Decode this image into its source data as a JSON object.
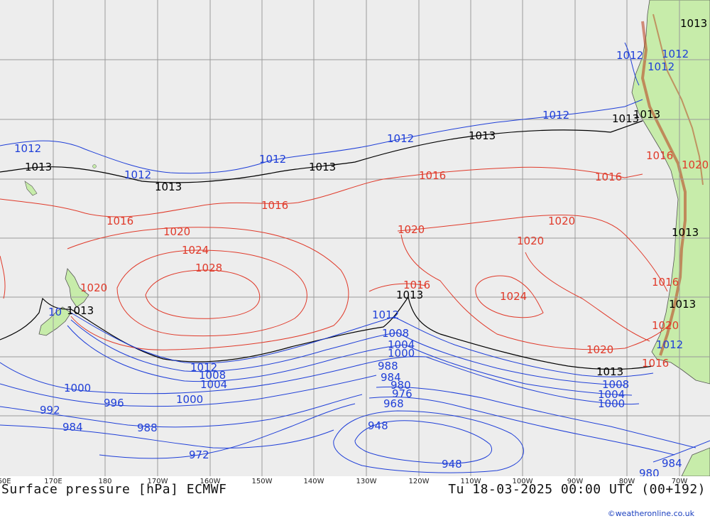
{
  "footer": {
    "title": "Surface pressure [hPa] ECMWF",
    "valid_time": "Tu 18-03-2025 00:00 UTC (00+192)",
    "credit": "©weatheronline.co.uk"
  },
  "longitude_labels": [
    "60E",
    "170E",
    "180",
    "170W",
    "160W",
    "150W",
    "140W",
    "130W",
    "120W",
    "110W",
    "100W",
    "90W",
    "80W",
    "70W"
  ],
  "isobar_labels": {
    "black": [
      "1013",
      "1013",
      "1013",
      "1013",
      "1013",
      "1013",
      "1013",
      "1013",
      "1013",
      "1013",
      "1013",
      "1013"
    ],
    "red": [
      "1016",
      "1016",
      "1016",
      "1016",
      "1016",
      "1020",
      "1020",
      "1020",
      "1020",
      "1020",
      "1020",
      "1024",
      "1024",
      "1028",
      "1016",
      "1016",
      "1016",
      "1020",
      "1020"
    ],
    "blue_north": [
      "1012",
      "1012",
      "1012",
      "1012",
      "1012",
      "1012",
      "1012",
      "1012",
      "1012",
      "1012"
    ],
    "blue_south": [
      "1012",
      "1008",
      "1004",
      "1000",
      "1000",
      "996",
      "992",
      "984",
      "988",
      "1000",
      "972",
      "1008",
      "1004",
      "1000",
      "988",
      "984",
      "980",
      "976",
      "968",
      "948",
      "948",
      "1008",
      "1004",
      "1000",
      "984",
      "980",
      "1012",
      "10"
    ]
  },
  "colors": {
    "ocean": "#ededed",
    "land": "#c7ecaa",
    "grid": "#9a9a9a",
    "isobar_low": "#1f3fd8",
    "isobar_high": "#e03a2a",
    "isobar_1013": "#000000",
    "terrain": "#b83a18"
  }
}
